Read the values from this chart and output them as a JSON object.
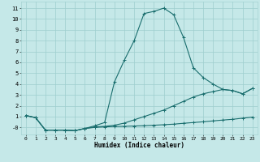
{
  "xlabel": "Humidex (Indice chaleur)",
  "bg_color": "#c5e8e8",
  "grid_color": "#9ecece",
  "line_color": "#1a6e6e",
  "xlim": [
    -0.5,
    23.5
  ],
  "ylim": [
    -0.65,
    11.6
  ],
  "xticks": [
    0,
    1,
    2,
    3,
    4,
    5,
    6,
    7,
    8,
    9,
    10,
    11,
    12,
    13,
    14,
    15,
    16,
    17,
    18,
    19,
    20,
    21,
    22,
    23
  ],
  "yticks": [
    0,
    1,
    2,
    3,
    4,
    5,
    6,
    7,
    8,
    9,
    10,
    11
  ],
  "ytick_labels": [
    "-0",
    "1",
    "2",
    "3",
    "4",
    "5",
    "6",
    "7",
    "8",
    "9",
    "10",
    "11"
  ],
  "line_peak_x": [
    0,
    1,
    2,
    3,
    4,
    5,
    6,
    7,
    8,
    9,
    10,
    11,
    12,
    13,
    14,
    15,
    16,
    17,
    18,
    19,
    20,
    21,
    22,
    23
  ],
  "line_peak_y": [
    1.1,
    0.9,
    -0.25,
    -0.25,
    -0.25,
    -0.3,
    -0.1,
    0.15,
    0.45,
    4.2,
    6.2,
    8.0,
    10.5,
    10.7,
    11.0,
    10.4,
    8.3,
    5.5,
    4.6,
    4.0,
    3.5,
    3.4,
    3.1,
    3.6
  ],
  "line_mid_x": [
    0,
    1,
    2,
    3,
    4,
    5,
    6,
    7,
    8,
    9,
    10,
    11,
    12,
    13,
    14,
    15,
    16,
    17,
    18,
    19,
    20,
    21,
    22,
    23
  ],
  "line_mid_y": [
    1.1,
    0.9,
    -0.25,
    -0.25,
    -0.25,
    -0.3,
    -0.1,
    0.05,
    0.1,
    0.2,
    0.4,
    0.7,
    1.0,
    1.3,
    1.6,
    2.0,
    2.4,
    2.8,
    3.1,
    3.3,
    3.5,
    3.4,
    3.1,
    3.6
  ],
  "line_flat_x": [
    0,
    1,
    2,
    3,
    4,
    5,
    6,
    7,
    8,
    9,
    10,
    11,
    12,
    13,
    14,
    15,
    16,
    17,
    18,
    19,
    20,
    21,
    22,
    23
  ],
  "line_flat_y": [
    1.1,
    0.9,
    -0.25,
    -0.25,
    -0.25,
    -0.3,
    -0.1,
    0.0,
    0.05,
    0.08,
    0.1,
    0.13,
    0.16,
    0.2,
    0.25,
    0.3,
    0.38,
    0.45,
    0.52,
    0.6,
    0.68,
    0.75,
    0.85,
    0.95
  ]
}
